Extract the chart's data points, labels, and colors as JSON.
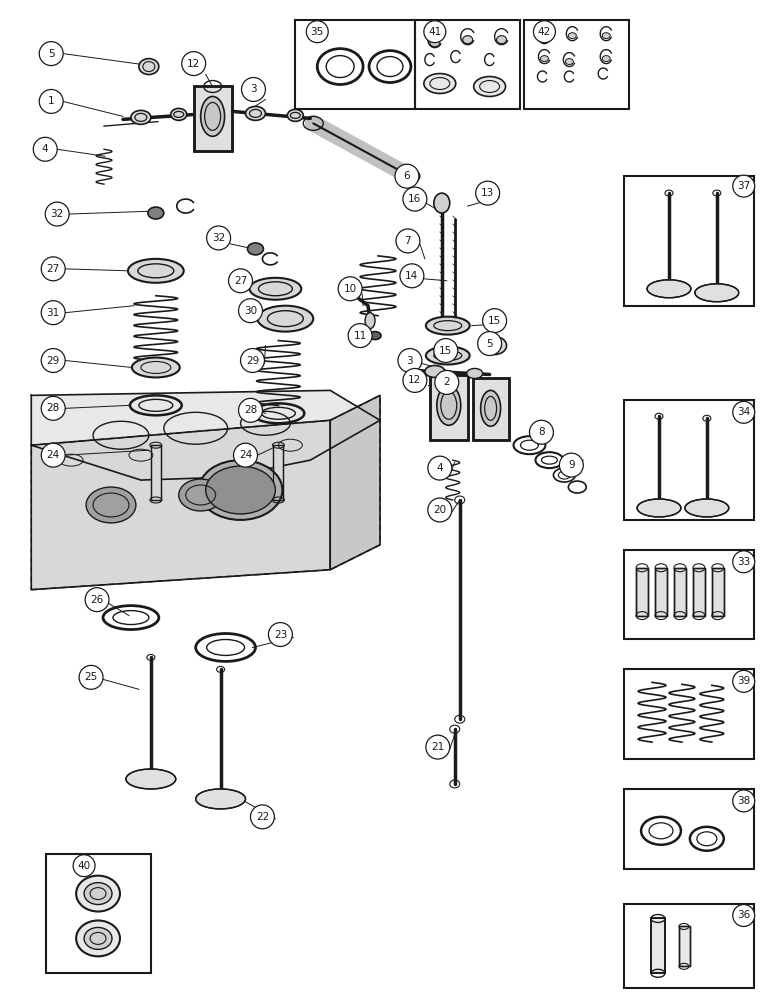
{
  "bg_color": "#ffffff",
  "line_color": "#1a1a1a",
  "fig_width": 7.72,
  "fig_height": 10.0,
  "dpi": 100
}
